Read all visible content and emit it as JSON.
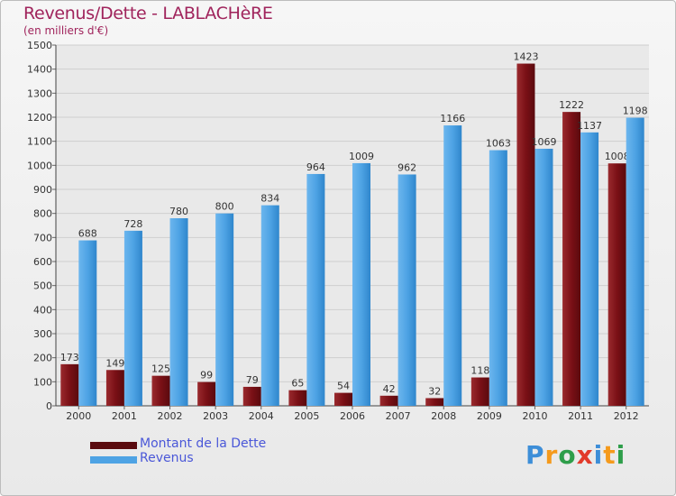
{
  "header": {
    "title": "Revenus/Dette - LABLACHèRE",
    "subtitle": "(en milliers d'€)"
  },
  "colors": {
    "title": "#a0245c",
    "dette": "#7a1016",
    "revenus": "#4ea3e4",
    "legend_text": "#4a57d8"
  },
  "legend": {
    "items": [
      {
        "label": "Montant de la Dette",
        "color": "#5a0a0e"
      },
      {
        "label": "Revenus",
        "color": "#4ea3e4"
      }
    ]
  },
  "logo": {
    "letters": [
      "P",
      "r",
      "o",
      "x",
      "i",
      "t",
      "i"
    ],
    "colors": [
      "#3d8ed8",
      "#f59a1c",
      "#2e9e4a",
      "#e23a2a",
      "#3d8ed8",
      "#f59a1c",
      "#2e9e4a"
    ]
  },
  "chart_data": {
    "type": "bar",
    "categories": [
      "2000",
      "2001",
      "2002",
      "2003",
      "2004",
      "2005",
      "2006",
      "2007",
      "2008",
      "2009",
      "2010",
      "2011",
      "2012"
    ],
    "series": [
      {
        "name": "Montant de la Dette",
        "values": [
          173,
          149,
          125,
          99,
          79,
          65,
          54,
          42,
          32,
          118,
          1423,
          1222,
          1008
        ]
      },
      {
        "name": "Revenus",
        "values": [
          688,
          728,
          780,
          800,
          834,
          964,
          1009,
          962,
          1166,
          1063,
          1069,
          1137,
          1198
        ]
      }
    ],
    "ylim": [
      0,
      1500
    ],
    "yticks": [
      0,
      100,
      200,
      300,
      400,
      500,
      600,
      700,
      800,
      900,
      1000,
      1100,
      1200,
      1300,
      1400,
      1500
    ],
    "grid": true,
    "legend_position": "bottom-left"
  }
}
